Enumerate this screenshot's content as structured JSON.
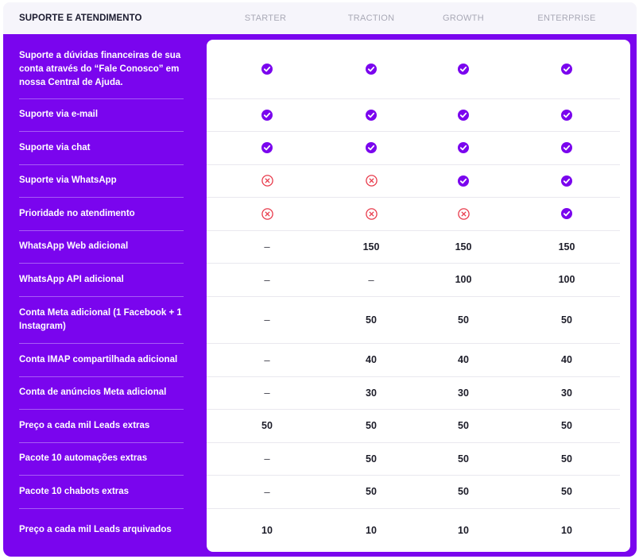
{
  "header": {
    "title": "SUPORTE E ATENDIMENTO",
    "plans": [
      "STARTER",
      "TRACTION",
      "GROWTH",
      "ENTERPRISE"
    ]
  },
  "colors": {
    "brand_purple": "#7a05ee",
    "check": "#7a05ee",
    "cross": "#e8394a"
  },
  "rows": [
    {
      "feature": "Suporte a dúvidas financeiras de sua conta através do “Fale Conosco” em nossa Central de Ajuda.",
      "values": [
        "check",
        "check",
        "check",
        "check"
      ]
    },
    {
      "feature": "Suporte via e-mail",
      "values": [
        "check",
        "check",
        "check",
        "check"
      ]
    },
    {
      "feature": "Suporte via chat",
      "values": [
        "check",
        "check",
        "check",
        "check"
      ]
    },
    {
      "feature": "Suporte via WhatsApp",
      "values": [
        "cross",
        "cross",
        "check",
        "check"
      ]
    },
    {
      "feature": "Prioridade no atendimento",
      "values": [
        "cross",
        "cross",
        "cross",
        "check"
      ]
    },
    {
      "feature": "WhatsApp Web adicional",
      "values": [
        "–",
        "150",
        "150",
        "150"
      ]
    },
    {
      "feature": "WhatsApp API adicional",
      "values": [
        "–",
        "–",
        "100",
        "100"
      ]
    },
    {
      "feature": "Conta Meta adicional (1 Facebook + 1 Instagram)",
      "values": [
        "–",
        "50",
        "50",
        "50"
      ]
    },
    {
      "feature": "Conta IMAP compartilhada adicional",
      "values": [
        "–",
        "40",
        "40",
        "40"
      ]
    },
    {
      "feature": "Conta de anúncios Meta adicional",
      "values": [
        "–",
        "30",
        "30",
        "30"
      ]
    },
    {
      "feature": "Preço a cada mil Leads extras",
      "values": [
        "50",
        "50",
        "50",
        "50"
      ]
    },
    {
      "feature": "Pacote 10 automações extras",
      "values": [
        "–",
        "50",
        "50",
        "50"
      ]
    },
    {
      "feature": "Pacote 10 chabots extras",
      "values": [
        "–",
        "50",
        "50",
        "50"
      ]
    },
    {
      "feature": "Preço a cada mil Leads arquivados",
      "values": [
        "10",
        "10",
        "10",
        "10"
      ]
    }
  ]
}
